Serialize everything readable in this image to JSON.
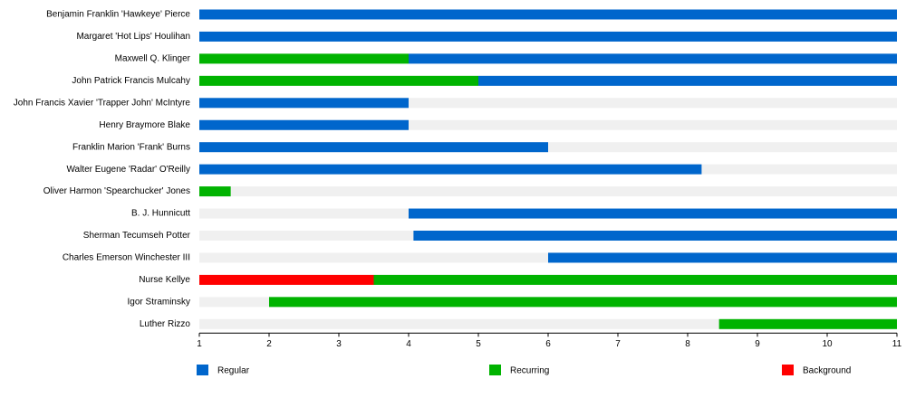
{
  "chart_data": {
    "type": "timeline",
    "categories": [
      "Benjamin Franklin 'Hawkeye' Pierce",
      "Margaret 'Hot Lips' Houlihan",
      "Maxwell Q. Klinger",
      "John Patrick Francis Mulcahy",
      "John Francis Xavier 'Trapper John' McIntyre",
      "Henry Braymore Blake",
      "Franklin Marion 'Frank' Burns",
      "Walter Eugene 'Radar' O'Reilly",
      "Oliver Harmon 'Spearchucker' Jones",
      "B. J. Hunnicutt",
      "Sherman Tecumseh Potter",
      "Charles Emerson Winchester III",
      "Nurse Kellye",
      "Igor Straminsky",
      "Luther Rizzo"
    ],
    "series": [
      {
        "name": "Regular",
        "color": "#0066cc",
        "values": [
          [
            1,
            11
          ],
          [
            1,
            11
          ],
          [
            4,
            11
          ],
          [
            5,
            11
          ],
          [
            1,
            4
          ],
          [
            1,
            4
          ],
          [
            1,
            6
          ],
          [
            1,
            8.2
          ],
          null,
          [
            4,
            11
          ],
          [
            4.07,
            11
          ],
          [
            6,
            11
          ],
          null,
          null,
          null
        ]
      },
      {
        "name": "Recurring",
        "color": "#00b300",
        "values": [
          null,
          null,
          [
            1,
            4
          ],
          [
            1,
            5
          ],
          null,
          null,
          null,
          null,
          [
            1,
            1.45
          ],
          null,
          null,
          null,
          [
            3.5,
            11
          ],
          [
            2,
            11
          ],
          [
            8.45,
            11
          ]
        ]
      },
      {
        "name": "Background",
        "color": "#ff0000",
        "values": [
          null,
          null,
          null,
          null,
          null,
          null,
          null,
          null,
          null,
          null,
          null,
          null,
          [
            1,
            3.5
          ],
          null,
          null
        ]
      }
    ],
    "xlim": [
      1,
      11
    ],
    "xticks": [
      1,
      2,
      3,
      4,
      5,
      6,
      7,
      8,
      9,
      10,
      11
    ]
  }
}
